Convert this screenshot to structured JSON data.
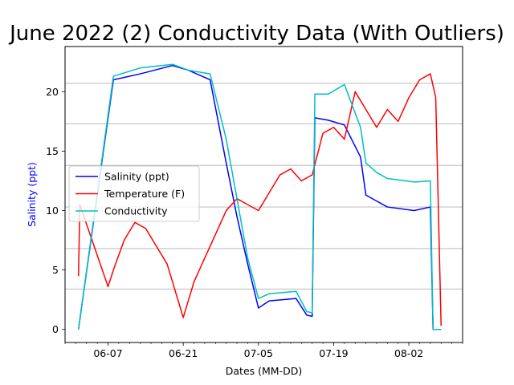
{
  "chart_data": {
    "type": "line",
    "title": "June 2022 (2) Conductivity Data (With Outliers)",
    "xlabel": "Dates (MM-DD)",
    "ylabel": "Salinity (ppt)",
    "ylabel_color": "#0000ff",
    "x_range": [
      "2022-05-30",
      "2022-08-12"
    ],
    "ylim": [
      -1.1,
      23.8
    ],
    "x_ticks": [
      {
        "date": "2022-06-07",
        "label": "06-07"
      },
      {
        "date": "2022-06-21",
        "label": "06-21"
      },
      {
        "date": "2022-07-05",
        "label": "07-05"
      },
      {
        "date": "2022-07-19",
        "label": "07-19"
      },
      {
        "date": "2022-08-02",
        "label": "08-02"
      }
    ],
    "y_ticks": [
      {
        "value": 0,
        "label": "0"
      },
      {
        "value": 5,
        "label": "5"
      },
      {
        "value": 10,
        "label": "10"
      },
      {
        "value": 15,
        "label": "15"
      },
      {
        "value": 20,
        "label": "20"
      }
    ],
    "grid": {
      "axis": "y",
      "lines": [
        -1.1,
        3.4,
        6.8,
        10.3,
        13.8,
        17.3,
        20.7
      ]
    },
    "legend": {
      "placement": "center-left"
    },
    "series": [
      {
        "name": "Salinity (ppt)",
        "color": "#0000ff",
        "points": [
          [
            "2022-06-01T12:00",
            0
          ],
          [
            "2022-06-08",
            21.0
          ],
          [
            "2022-06-13",
            21.5
          ],
          [
            "2022-06-19",
            22.2
          ],
          [
            "2022-06-22",
            21.8
          ],
          [
            "2022-06-26",
            21.0
          ],
          [
            "2022-06-29",
            14.0
          ],
          [
            "2022-07-01",
            9.5
          ],
          [
            "2022-07-03",
            5.5
          ],
          [
            "2022-07-05",
            1.8
          ],
          [
            "2022-07-07",
            2.4
          ],
          [
            "2022-07-12",
            2.6
          ],
          [
            "2022-07-14",
            1.2
          ],
          [
            "2022-07-15",
            1.1
          ],
          [
            "2022-07-15T12:00",
            17.8
          ],
          [
            "2022-07-18",
            17.6
          ],
          [
            "2022-07-21",
            17.2
          ],
          [
            "2022-07-24",
            14.5
          ],
          [
            "2022-07-25",
            11.3
          ],
          [
            "2022-07-27",
            10.8
          ],
          [
            "2022-07-29",
            10.3
          ],
          [
            "2022-08-03",
            10.0
          ],
          [
            "2022-08-06",
            10.3
          ],
          [
            "2022-08-06T12:00",
            0
          ],
          [
            "2022-08-08",
            0
          ]
        ]
      },
      {
        "name": "Temperature (F)",
        "color": "#ff0000",
        "points": [
          [
            "2022-06-01T12:00",
            4.5
          ],
          [
            "2022-06-01T18:00",
            10.5
          ],
          [
            "2022-06-07",
            3.6
          ],
          [
            "2022-06-08",
            5.0
          ],
          [
            "2022-06-10",
            7.5
          ],
          [
            "2022-06-12",
            9.0
          ],
          [
            "2022-06-14",
            8.5
          ],
          [
            "2022-06-16",
            7.0
          ],
          [
            "2022-06-18",
            5.5
          ],
          [
            "2022-06-21",
            1.0
          ],
          [
            "2022-06-23",
            4.0
          ],
          [
            "2022-06-25",
            6.0
          ],
          [
            "2022-06-27",
            8.0
          ],
          [
            "2022-06-29",
            10.0
          ],
          [
            "2022-07-01",
            11.0
          ],
          [
            "2022-07-03",
            10.5
          ],
          [
            "2022-07-05",
            10.0
          ],
          [
            "2022-07-07",
            11.5
          ],
          [
            "2022-07-09",
            13.0
          ],
          [
            "2022-07-11",
            13.5
          ],
          [
            "2022-07-13",
            12.5
          ],
          [
            "2022-07-15",
            13.0
          ],
          [
            "2022-07-17",
            16.5
          ],
          [
            "2022-07-19",
            17.0
          ],
          [
            "2022-07-21",
            16.0
          ],
          [
            "2022-07-23",
            20.0
          ],
          [
            "2022-07-25",
            18.5
          ],
          [
            "2022-07-27",
            17.0
          ],
          [
            "2022-07-29",
            18.5
          ],
          [
            "2022-07-31",
            17.5
          ],
          [
            "2022-08-02",
            19.5
          ],
          [
            "2022-08-04",
            21.0
          ],
          [
            "2022-08-06",
            21.5
          ],
          [
            "2022-08-07",
            19.5
          ],
          [
            "2022-08-08",
            0.3
          ]
        ]
      },
      {
        "name": "Conductivity",
        "color": "#00bfbf",
        "points": [
          [
            "2022-06-01T12:00",
            0
          ],
          [
            "2022-06-08",
            21.3
          ],
          [
            "2022-06-13",
            22.0
          ],
          [
            "2022-06-19",
            22.3
          ],
          [
            "2022-06-22",
            21.8
          ],
          [
            "2022-06-26",
            21.5
          ],
          [
            "2022-06-29",
            16.0
          ],
          [
            "2022-07-01",
            11.0
          ],
          [
            "2022-07-03",
            6.0
          ],
          [
            "2022-07-05",
            2.6
          ],
          [
            "2022-07-07",
            3.0
          ],
          [
            "2022-07-12",
            3.2
          ],
          [
            "2022-07-14",
            1.5
          ],
          [
            "2022-07-15",
            1.4
          ],
          [
            "2022-07-15T12:00",
            19.8
          ],
          [
            "2022-07-18",
            19.8
          ],
          [
            "2022-07-21",
            20.6
          ],
          [
            "2022-07-24",
            17.0
          ],
          [
            "2022-07-25",
            14.0
          ],
          [
            "2022-07-27",
            13.2
          ],
          [
            "2022-07-29",
            12.7
          ],
          [
            "2022-08-03",
            12.4
          ],
          [
            "2022-08-06",
            12.5
          ],
          [
            "2022-08-06T12:00",
            0
          ],
          [
            "2022-08-08",
            0
          ]
        ]
      }
    ]
  }
}
